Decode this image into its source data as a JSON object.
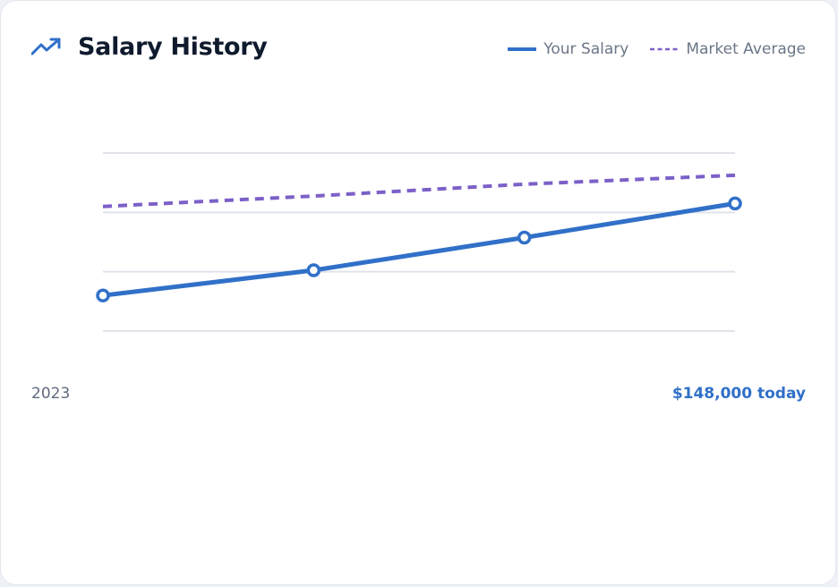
{
  "header": {
    "title": "Salary History",
    "icon": "trending-up-icon"
  },
  "colors": {
    "your_salary": "#3070c8",
    "market_average": "#7c60c8",
    "grid": "#dfe3ea",
    "title": "#0f1b2d",
    "accent": "#3070c8"
  },
  "legend": {
    "your_salary_label": "Your Salary",
    "market_average_label": "Market Average"
  },
  "footer": {
    "start_label": "2023",
    "current_label": "$148,000 today"
  },
  "chart_data": {
    "type": "line",
    "title": "Salary History",
    "xlabel": "",
    "ylabel": "",
    "x": [
      0,
      1,
      2,
      3
    ],
    "ylim": [
      105000,
      165000
    ],
    "grid": true,
    "legend_position": "top-right",
    "series": [
      {
        "name": "Your Salary",
        "values": [
          117000,
          125500,
          136500,
          148000
        ],
        "style": "solid",
        "markers": true
      },
      {
        "name": "Market Average",
        "values": [
          147000,
          150500,
          154500,
          157500
        ],
        "style": "dashed",
        "markers": false
      }
    ]
  }
}
